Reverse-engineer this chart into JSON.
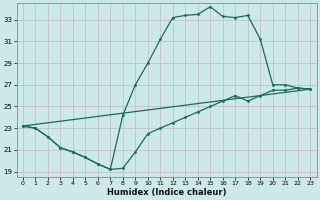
{
  "xlabel": "Humidex (Indice chaleur)",
  "ylabel": "",
  "bg_color": "#cce8e8",
  "grid_color": "#b0d8d8",
  "line_color": "#1a6b5a",
  "xlim": [
    -0.5,
    23.5
  ],
  "ylim": [
    18.5,
    34.5
  ],
  "xticks": [
    0,
    1,
    2,
    3,
    4,
    5,
    6,
    7,
    8,
    9,
    10,
    11,
    12,
    13,
    14,
    15,
    16,
    17,
    18,
    19,
    20,
    21,
    22,
    23
  ],
  "yticks": [
    19,
    21,
    23,
    25,
    27,
    29,
    31,
    33
  ],
  "line1_x": [
    0,
    1,
    2,
    3,
    4,
    5,
    6,
    7,
    8,
    9,
    10,
    11,
    12,
    13,
    14,
    15,
    16,
    17,
    18,
    19,
    20,
    21,
    22,
    23
  ],
  "line1_y": [
    23.2,
    23.0,
    22.2,
    21.2,
    20.8,
    20.3,
    19.7,
    19.2,
    19.3,
    20.8,
    22.5,
    23.0,
    23.5,
    24.0,
    24.5,
    25.0,
    25.5,
    26.0,
    25.5,
    26.0,
    26.5,
    26.5,
    26.7,
    26.6
  ],
  "line2_x": [
    0,
    1,
    2,
    3,
    4,
    5,
    6,
    7,
    8,
    9,
    10,
    11,
    12,
    13,
    14,
    15,
    16,
    17,
    18,
    19,
    20,
    21,
    22,
    23
  ],
  "line2_y": [
    23.2,
    23.0,
    22.2,
    21.2,
    20.8,
    20.3,
    19.7,
    19.2,
    24.2,
    27.0,
    29.0,
    31.2,
    33.2,
    33.4,
    33.5,
    34.2,
    33.3,
    33.2,
    33.4,
    31.2,
    27.0,
    27.0,
    26.7,
    26.6
  ],
  "line3_x": [
    0,
    23
  ],
  "line3_y": [
    23.2,
    26.6
  ]
}
